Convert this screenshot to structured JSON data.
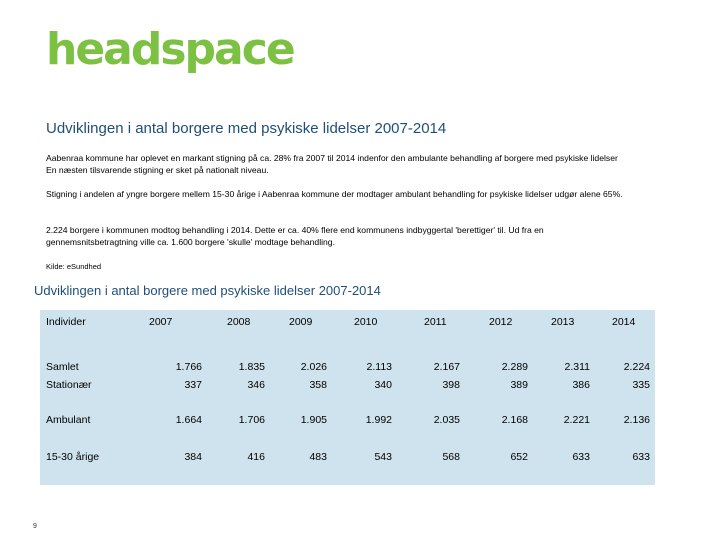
{
  "logo": {
    "text": "headspace",
    "color": "#7cc142"
  },
  "section1": {
    "title": "Udviklingen i antal borgere med psykiske lidelser 2007-2014",
    "paragraphs": [
      "Aabenraa kommune har oplevet en markant stigning på ca. 28% fra 2007 til 2014 indenfor den ambulante behandling af borgere med psykiske lidelser En næsten tilsvarende stigning er sket på nationalt niveau.",
      "Stigning i andelen af yngre borgere mellem 15-30 årige i Aabenraa kommune der modtager ambulant behandling for psykiske lidelser udgør alene 65%.",
      "2.224 borgere i kommunen modtog behandling i 2014. Dette er ca. 40% flere end kommunens indbyggertal 'berettiger' til. Ud fra en gennemsnitsbetragtning ville ca. 1.600 borgere 'skulle' modtage behandling."
    ],
    "source": "Kilde: eSundhed"
  },
  "section2": {
    "title": "Udviklingen i antal borgere med psykiske lidelser 2007-2014"
  },
  "table": {
    "header_label": "Individer",
    "years": [
      "2007",
      "2008",
      "2009",
      "2010",
      "2011",
      "2012",
      "2013",
      "2014"
    ],
    "rows": [
      {
        "label": "Samlet",
        "values": [
          "1.766",
          "1.835",
          "2.026",
          "2.113",
          "2.167",
          "2.289",
          "2.311",
          "2.224"
        ]
      },
      {
        "label": "Stationær",
        "values": [
          "337",
          "346",
          "358",
          "340",
          "398",
          "389",
          "386",
          "335"
        ]
      },
      {
        "label": "Ambulant",
        "values": [
          "1.664",
          "1.706",
          "1.905",
          "1.992",
          "2.035",
          "2.168",
          "2.221",
          "2.136"
        ]
      },
      {
        "label": "15-30 årige",
        "values": [
          "384",
          "416",
          "483",
          "543",
          "568",
          "652",
          "633",
          "633"
        ]
      }
    ],
    "background": "#cfe3ef"
  },
  "page_number": "9"
}
